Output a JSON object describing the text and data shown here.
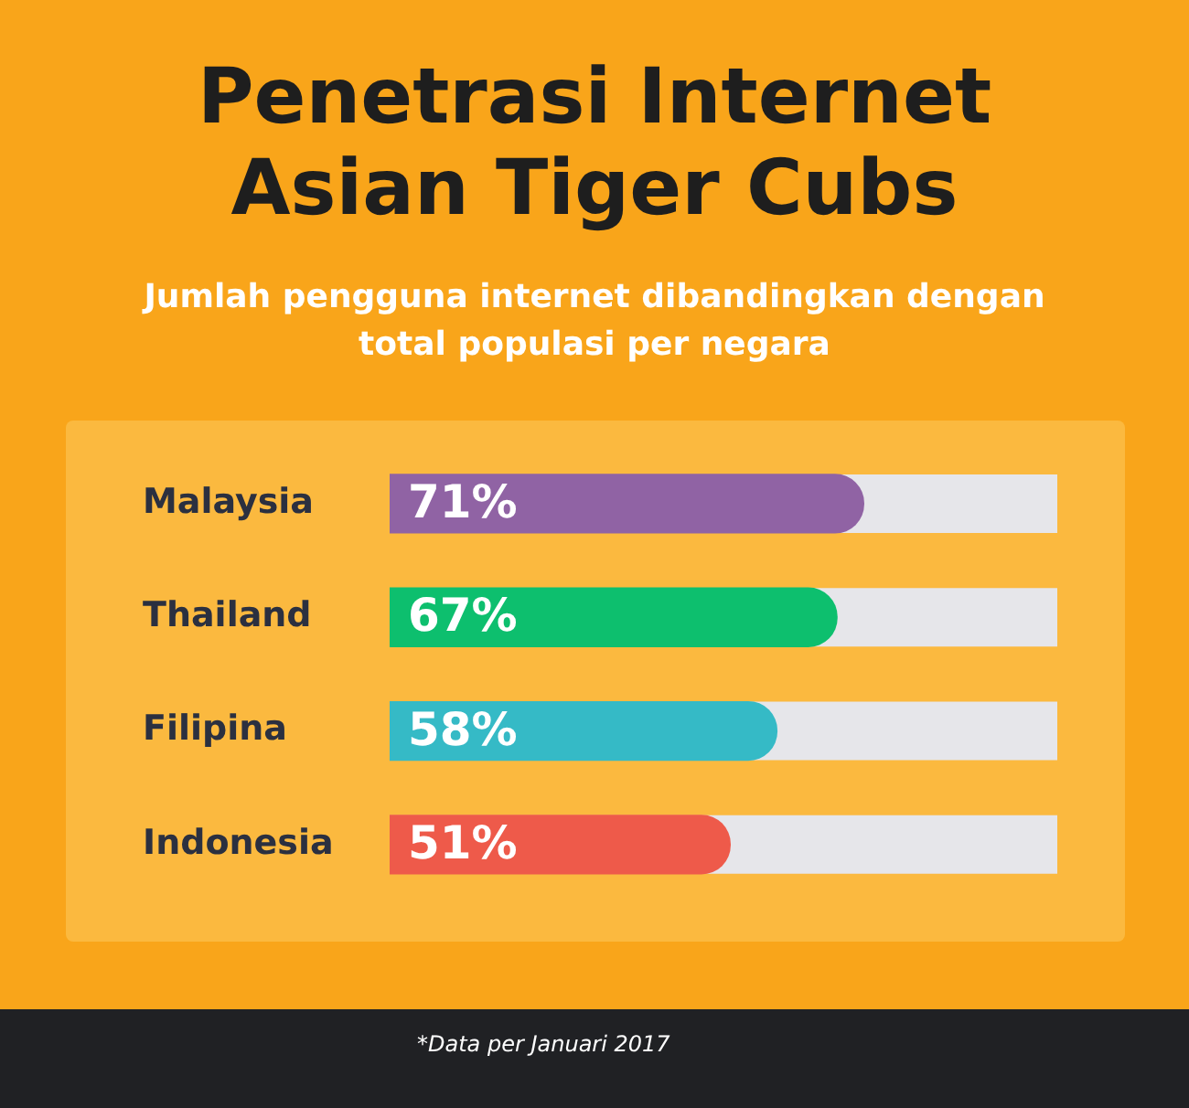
{
  "chart_data": {
    "type": "bar",
    "orientation": "horizontal",
    "title": "Penetrasi Internet\nAsian Tiger Cubs",
    "subtitle": "Jumlah pengguna internet dibandingkan dengan total populasi per negara",
    "categories": [
      "Malaysia",
      "Thailand",
      "Filipina",
      "Indonesia"
    ],
    "values": [
      71,
      67,
      58,
      51
    ],
    "colors": [
      "#9063a4",
      "#0dbf6e",
      "#35bac6",
      "#ee5a4a"
    ],
    "value_labels": [
      "71%",
      "67%",
      "58%",
      "51%"
    ],
    "xlim": [
      0,
      100
    ],
    "grid": false,
    "legend": false,
    "tick_labels": "y",
    "annotations": [
      "*Data per Januari 2017"
    ]
  }
}
